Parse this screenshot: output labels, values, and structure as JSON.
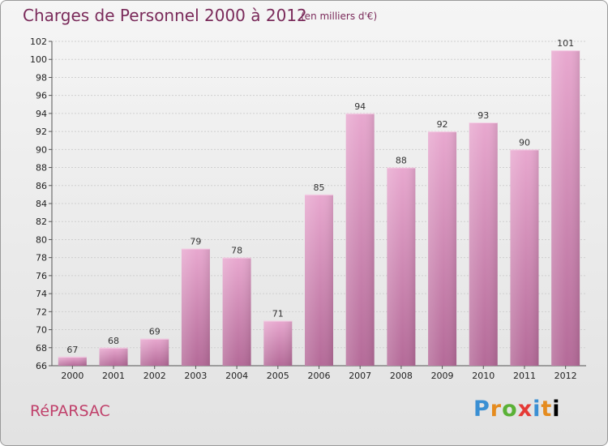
{
  "header": {
    "title": "Charges de Personnel 2000 à 2012",
    "subtitle": "(en milliers d'€)"
  },
  "footer": {
    "commune": "RéPARSAC",
    "logo": [
      "P",
      "r",
      "o",
      "x",
      "i",
      "t",
      "i"
    ]
  },
  "colors": {
    "bar_top": "#e8a8cf",
    "bar_bottom": "#b46a98",
    "title": "#7a2a5a",
    "commune": "#c0416b"
  },
  "chart_data": {
    "type": "bar",
    "categories": [
      "2000",
      "2001",
      "2002",
      "2003",
      "2004",
      "2005",
      "2006",
      "2007",
      "2008",
      "2009",
      "2010",
      "2011",
      "2012"
    ],
    "values": [
      67,
      68,
      69,
      79,
      78,
      71,
      85,
      94,
      88,
      92,
      93,
      90,
      101
    ],
    "title": "Charges de Personnel 2000 à 2012",
    "subtitle": "(en milliers d'€)",
    "xlabel": "",
    "ylabel": "",
    "ylim": [
      66,
      102
    ],
    "yticks": [
      66,
      68,
      70,
      72,
      74,
      76,
      78,
      80,
      82,
      84,
      86,
      88,
      90,
      92,
      94,
      96,
      98,
      100,
      102
    ],
    "grid": true,
    "data_labels": true
  }
}
